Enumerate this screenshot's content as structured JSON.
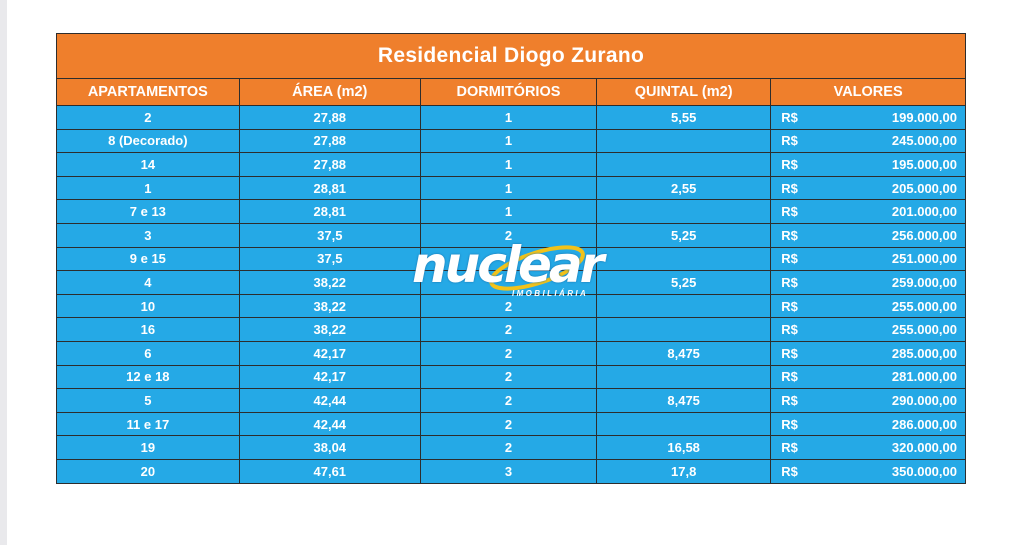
{
  "title": "Residencial Diogo Zurano",
  "columns": {
    "apartamentos": "APARTAMENTOS",
    "area": "ÁREA (m2)",
    "dormitorios": "DORMITÓRIOS",
    "quintal": "QUINTAL (m2)",
    "valores": "VALORES"
  },
  "rows": [
    {
      "apartamento": "2",
      "area": "27,88",
      "dormitorios": "1",
      "quintal": "5,55",
      "moeda": "R$",
      "valor": "199.000,00"
    },
    {
      "apartamento": "8 (Decorado)",
      "area": "27,88",
      "dormitorios": "1",
      "quintal": "",
      "moeda": "R$",
      "valor": "245.000,00"
    },
    {
      "apartamento": "14",
      "area": "27,88",
      "dormitorios": "1",
      "quintal": "",
      "moeda": "R$",
      "valor": "195.000,00"
    },
    {
      "apartamento": "1",
      "area": "28,81",
      "dormitorios": "1",
      "quintal": "2,55",
      "moeda": "R$",
      "valor": "205.000,00"
    },
    {
      "apartamento": "7 e 13",
      "area": "28,81",
      "dormitorios": "1",
      "quintal": "",
      "moeda": "R$",
      "valor": "201.000,00"
    },
    {
      "apartamento": "3",
      "area": "37,5",
      "dormitorios": "2",
      "quintal": "5,25",
      "moeda": "R$",
      "valor": "256.000,00"
    },
    {
      "apartamento": "9 e 15",
      "area": "37,5",
      "dormitorios": "",
      "quintal": "",
      "moeda": "R$",
      "valor": "251.000,00"
    },
    {
      "apartamento": "4",
      "area": "38,22",
      "dormitorios": "",
      "quintal": "5,25",
      "moeda": "R$",
      "valor": "259.000,00"
    },
    {
      "apartamento": "10",
      "area": "38,22",
      "dormitorios": "2",
      "quintal": "",
      "moeda": "R$",
      "valor": "255.000,00"
    },
    {
      "apartamento": "16",
      "area": "38,22",
      "dormitorios": "2",
      "quintal": "",
      "moeda": "R$",
      "valor": "255.000,00"
    },
    {
      "apartamento": "6",
      "area": "42,17",
      "dormitorios": "2",
      "quintal": "8,475",
      "moeda": "R$",
      "valor": "285.000,00"
    },
    {
      "apartamento": "12 e 18",
      "area": "42,17",
      "dormitorios": "2",
      "quintal": "",
      "moeda": "R$",
      "valor": "281.000,00"
    },
    {
      "apartamento": "5",
      "area": "42,44",
      "dormitorios": "2",
      "quintal": "8,475",
      "moeda": "R$",
      "valor": "290.000,00"
    },
    {
      "apartamento": "11 e 17",
      "area": "42,44",
      "dormitorios": "2",
      "quintal": "",
      "moeda": "R$",
      "valor": "286.000,00"
    },
    {
      "apartamento": "19",
      "area": "38,04",
      "dormitorios": "2",
      "quintal": "16,58",
      "moeda": "R$",
      "valor": "320.000,00"
    },
    {
      "apartamento": "20",
      "area": "47,61",
      "dormitorios": "3",
      "quintal": "17,8",
      "moeda": "R$",
      "valor": "350.000,00"
    }
  ],
  "watermark": {
    "brand": "nuclear",
    "subtitle": "IMOBILIÁRIA",
    "icon": "ellipse-swoosh-icon",
    "colors": {
      "swoosh": "#f2c21a",
      "text": "#ffffff"
    }
  },
  "colors": {
    "header": "#ef7f2c",
    "row": "#25a9e6",
    "grid": "#2d2d2d",
    "text": "#ffffff"
  }
}
